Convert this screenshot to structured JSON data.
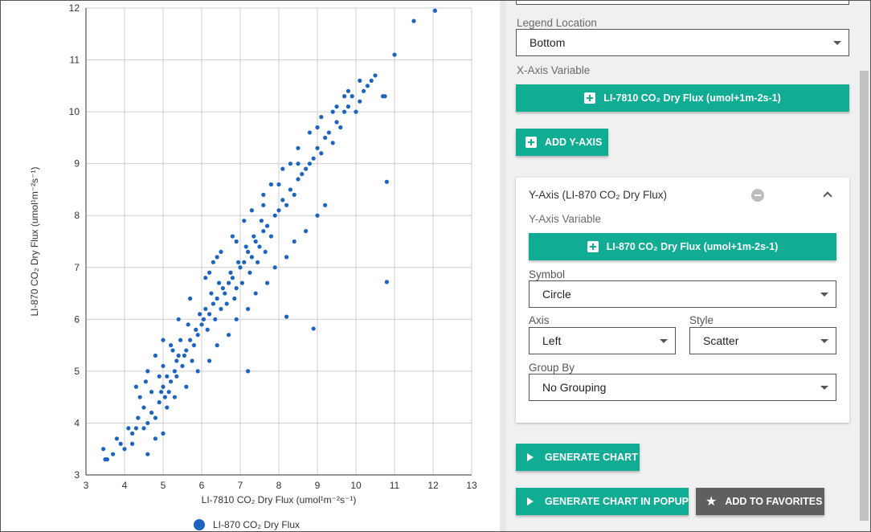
{
  "chart_data": {
    "type": "scatter",
    "xlabel": "LI-7810 CO₂ Dry Flux (umol¹m⁻²s⁻¹)",
    "ylabel": "LI-870 CO₂ Dry Flux (umol¹m⁻²s⁻¹)",
    "xlim": [
      3,
      13
    ],
    "ylim": [
      3,
      12
    ],
    "x_ticks": [
      "3",
      "4",
      "5",
      "6",
      "7",
      "8",
      "9",
      "10",
      "11",
      "12",
      "13"
    ],
    "y_ticks": [
      "3",
      "4",
      "5",
      "6",
      "7",
      "8",
      "9",
      "10",
      "11",
      "12"
    ],
    "grid": true,
    "legend_position": "bottom",
    "series": [
      {
        "name": "LI-870 CO₂ Dry Flux",
        "color": "#1b64c2",
        "points": [
          [
            3.5,
            3.3
          ],
          [
            3.55,
            3.3
          ],
          [
            3.45,
            3.5
          ],
          [
            3.7,
            3.4
          ],
          [
            3.8,
            3.7
          ],
          [
            3.9,
            3.6
          ],
          [
            4.0,
            3.5
          ],
          [
            4.1,
            3.9
          ],
          [
            4.2,
            3.6
          ],
          [
            4.3,
            3.9
          ],
          [
            4.35,
            4.1
          ],
          [
            4.5,
            4.3
          ],
          [
            4.6,
            4.0
          ],
          [
            4.6,
            3.4
          ],
          [
            4.7,
            4.2
          ],
          [
            4.8,
            3.7
          ],
          [
            4.9,
            4.4
          ],
          [
            4.95,
            4.6
          ],
          [
            5.0,
            4.7
          ],
          [
            5.05,
            4.5
          ],
          [
            5.1,
            4.9
          ],
          [
            5.2,
            4.8
          ],
          [
            5.3,
            5.0
          ],
          [
            5.35,
            5.2
          ],
          [
            5.4,
            5.3
          ],
          [
            5.5,
            5.1
          ],
          [
            5.6,
            5.4
          ],
          [
            5.7,
            5.6
          ],
          [
            5.8,
            5.5
          ],
          [
            5.85,
            5.8
          ],
          [
            5.9,
            5.7
          ],
          [
            6.0,
            5.9
          ],
          [
            6.05,
            6.0
          ],
          [
            6.1,
            6.2
          ],
          [
            6.2,
            6.1
          ],
          [
            6.3,
            6.3
          ],
          [
            6.4,
            6.4
          ],
          [
            6.5,
            6.2
          ],
          [
            6.55,
            6.6
          ],
          [
            6.6,
            6.5
          ],
          [
            6.7,
            6.7
          ],
          [
            6.8,
            6.8
          ],
          [
            6.9,
            6.6
          ],
          [
            7.0,
            7.0
          ],
          [
            7.1,
            7.1
          ],
          [
            7.2,
            7.3
          ],
          [
            7.3,
            7.2
          ],
          [
            7.4,
            7.5
          ],
          [
            7.5,
            7.4
          ],
          [
            7.6,
            7.7
          ],
          [
            7.7,
            7.8
          ],
          [
            7.8,
            7.6
          ],
          [
            7.9,
            8.0
          ],
          [
            8.0,
            8.1
          ],
          [
            8.1,
            8.3
          ],
          [
            8.2,
            8.2
          ],
          [
            8.3,
            8.5
          ],
          [
            8.4,
            8.4
          ],
          [
            8.5,
            8.7
          ],
          [
            8.6,
            8.8
          ],
          [
            8.7,
            8.9
          ],
          [
            8.8,
            9.0
          ],
          [
            8.9,
            9.1
          ],
          [
            9.0,
            9.3
          ],
          [
            9.1,
            9.2
          ],
          [
            9.2,
            9.5
          ],
          [
            9.3,
            9.6
          ],
          [
            9.4,
            9.4
          ],
          [
            9.5,
            9.8
          ],
          [
            9.6,
            9.7
          ],
          [
            9.7,
            10.0
          ],
          [
            9.8,
            10.1
          ],
          [
            9.9,
            10.3
          ],
          [
            10.0,
            10.0
          ],
          [
            10.1,
            10.2
          ],
          [
            10.2,
            10.4
          ],
          [
            10.3,
            10.5
          ],
          [
            10.4,
            10.6
          ],
          [
            10.5,
            10.7
          ],
          [
            10.7,
            10.3
          ],
          [
            10.75,
            10.3
          ],
          [
            10.8,
            8.65
          ],
          [
            10.8,
            6.72
          ],
          [
            11.0,
            11.1
          ],
          [
            11.5,
            11.75
          ],
          [
            12.05,
            11.95
          ],
          [
            8.2,
            6.05
          ],
          [
            8.9,
            5.82
          ],
          [
            7.2,
            5.0
          ],
          [
            5.0,
            3.8
          ],
          [
            4.3,
            4.7
          ],
          [
            4.6,
            5.0
          ],
          [
            5.2,
            5.5
          ],
          [
            5.4,
            6.0
          ],
          [
            5.7,
            6.4
          ],
          [
            6.1,
            6.8
          ],
          [
            6.3,
            7.1
          ],
          [
            6.5,
            7.3
          ],
          [
            6.8,
            7.6
          ],
          [
            7.1,
            7.9
          ],
          [
            7.3,
            8.1
          ],
          [
            7.6,
            8.4
          ],
          [
            7.8,
            8.6
          ],
          [
            8.1,
            8.9
          ],
          [
            8.3,
            9.0
          ],
          [
            8.5,
            9.3
          ],
          [
            8.8,
            9.6
          ],
          [
            9.1,
            9.9
          ],
          [
            9.4,
            10.0
          ],
          [
            9.7,
            10.3
          ],
          [
            4.2,
            3.8
          ],
          [
            4.5,
            3.9
          ],
          [
            4.8,
            4.1
          ],
          [
            5.1,
            4.3
          ],
          [
            5.3,
            4.5
          ],
          [
            5.6,
            4.7
          ],
          [
            5.9,
            5.0
          ],
          [
            6.2,
            5.2
          ],
          [
            6.4,
            5.5
          ],
          [
            6.7,
            5.7
          ],
          [
            6.9,
            6.0
          ],
          [
            7.2,
            6.2
          ],
          [
            7.4,
            6.5
          ],
          [
            7.7,
            6.7
          ],
          [
            7.9,
            7.0
          ],
          [
            8.2,
            7.2
          ],
          [
            8.4,
            7.5
          ],
          [
            8.7,
            7.7
          ],
          [
            9.0,
            8.0
          ],
          [
            9.2,
            8.2
          ],
          [
            5.45,
            5.6
          ],
          [
            5.55,
            5.3
          ],
          [
            5.65,
            5.9
          ],
          [
            5.75,
            5.2
          ],
          [
            5.95,
            6.1
          ],
          [
            6.15,
            5.8
          ],
          [
            6.25,
            6.5
          ],
          [
            6.35,
            6.0
          ],
          [
            6.45,
            6.7
          ],
          [
            6.65,
            6.3
          ],
          [
            6.75,
            6.9
          ],
          [
            6.85,
            6.4
          ],
          [
            6.95,
            7.1
          ],
          [
            7.05,
            6.7
          ],
          [
            7.15,
            7.4
          ],
          [
            7.25,
            6.9
          ],
          [
            7.35,
            7.6
          ],
          [
            7.45,
            7.1
          ],
          [
            7.55,
            7.9
          ],
          [
            7.65,
            7.3
          ],
          [
            4.9,
            4.9
          ],
          [
            5.0,
            5.1
          ],
          [
            5.15,
            4.6
          ],
          [
            5.25,
            5.4
          ],
          [
            5.35,
            4.9
          ],
          [
            4.7,
            4.6
          ],
          [
            4.55,
            4.8
          ],
          [
            4.4,
            4.5
          ],
          [
            4.8,
            5.3
          ],
          [
            5.0,
            5.6
          ],
          [
            6.2,
            6.9
          ],
          [
            6.4,
            7.2
          ],
          [
            6.9,
            7.5
          ],
          [
            7.6,
            8.2
          ],
          [
            8.0,
            8.6
          ],
          [
            8.5,
            9.0
          ],
          [
            9.0,
            9.7
          ],
          [
            9.5,
            10.1
          ],
          [
            9.8,
            10.4
          ],
          [
            10.1,
            10.6
          ]
        ]
      }
    ]
  },
  "settings": {
    "legend_location_label": "Legend Location",
    "legend_location_value": "Bottom",
    "x_axis_variable_label": "X-Axis Variable",
    "x_axis_variable_button": "LI-7810 CO₂ Dry Flux (umol+1m-2s-1)",
    "add_y_axis_button": "ADD Y-AXIS",
    "y_axis_card": {
      "title": "Y-Axis (LI-870 CO₂ Dry Flux)",
      "variable_label": "Y-Axis Variable",
      "variable_button": "LI-870 CO₂ Dry Flux (umol+1m-2s-1)",
      "symbol_label": "Symbol",
      "symbol_value": "Circle",
      "axis_label": "Axis",
      "axis_value": "Left",
      "style_label": "Style",
      "style_value": "Scatter",
      "group_by_label": "Group By",
      "group_by_value": "No Grouping"
    },
    "generate_chart_button": "GENERATE CHART",
    "generate_popup_button": "GENERATE CHART IN POPUP",
    "add_favorites_button": "ADD TO FAVORITES"
  },
  "colors": {
    "accent": "#10ac94",
    "point": "#1b64c2",
    "grey_button": "#5f5f5f"
  },
  "icons": [
    "plus-icon",
    "minus-circle-icon",
    "chevron-up-icon",
    "play-icon",
    "star-icon",
    "caret-down-icon"
  ]
}
